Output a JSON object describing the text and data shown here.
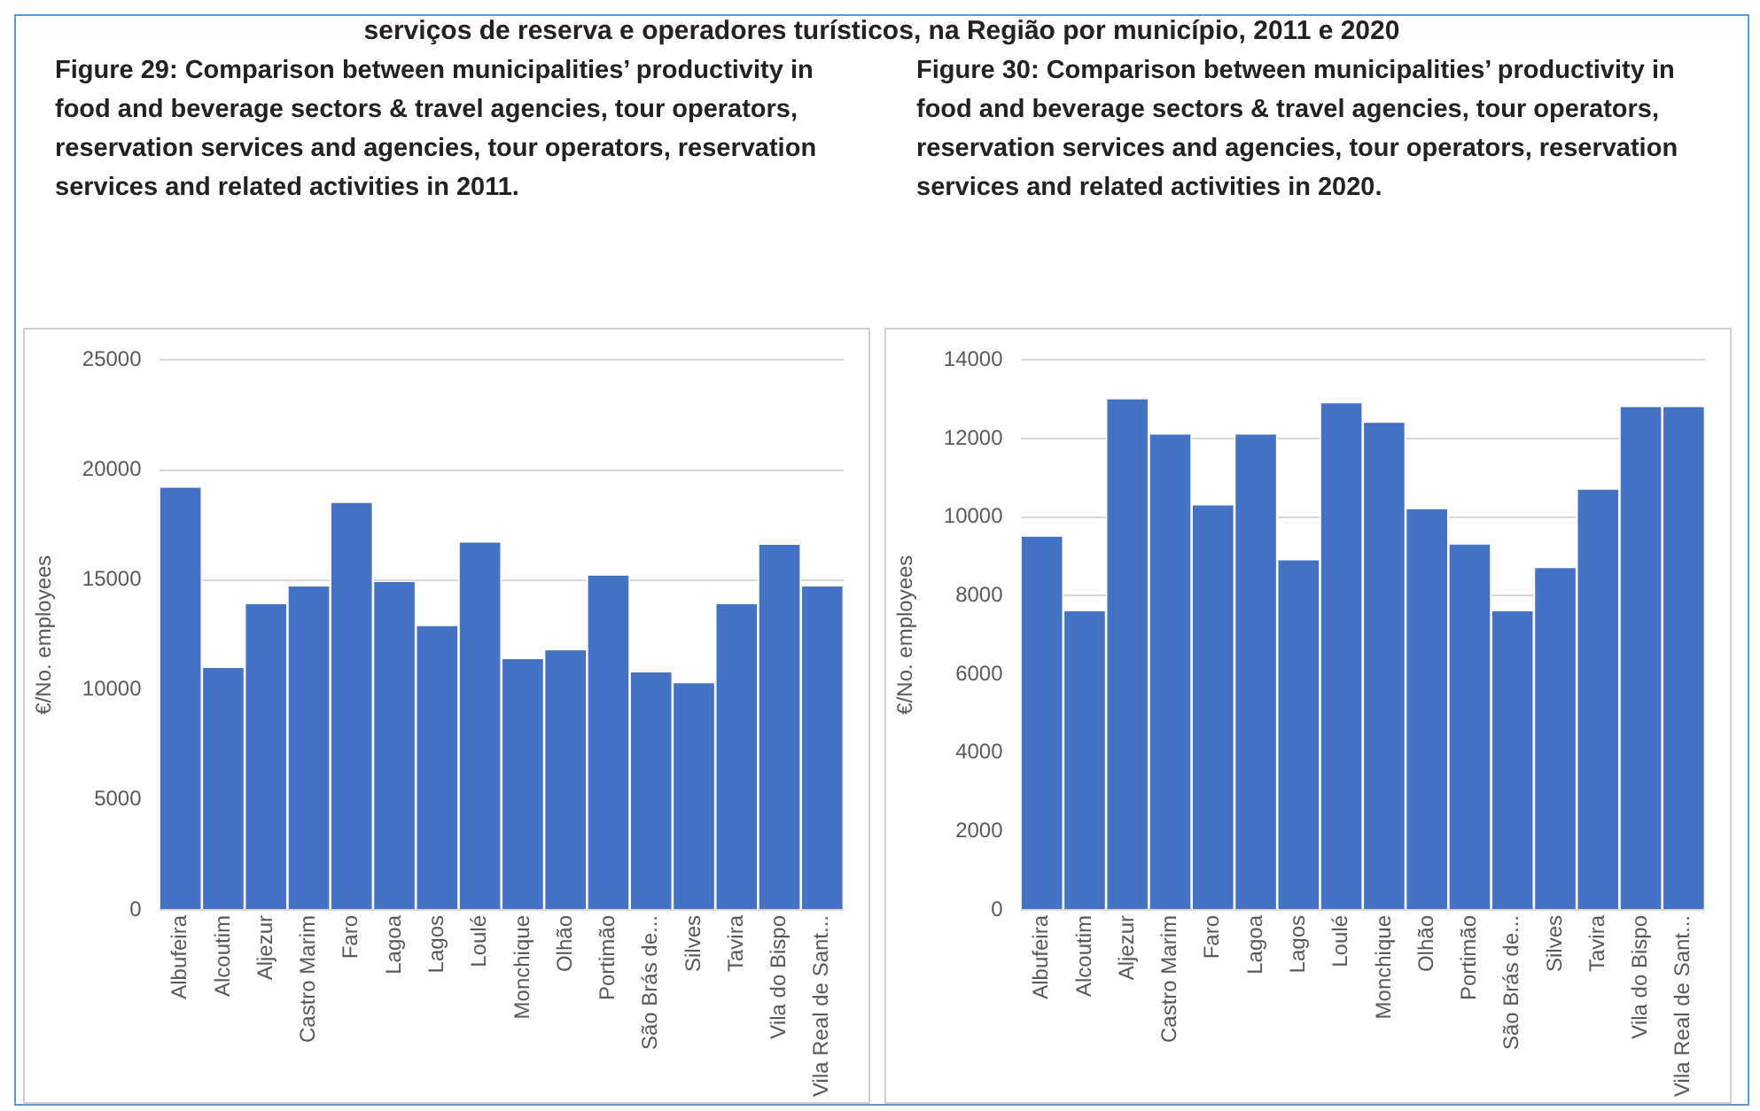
{
  "chart_data": [
    {
      "type": "bar",
      "title": "Figure 29: Comparison between municipalities’ productivity in food and beverage sectors & travel agencies, tour operators, reservation services and agencies, tour operators, reservation services and related activities in 2011.",
      "annotations": [
        "serviços de reserva e operadores turísticos, na Região por município, 2011 e 2020"
      ],
      "ylabel": "€/No. employees",
      "categories": [
        "Albufeira",
        "Alcoutim",
        "Aljezur",
        "Castro Marim",
        "Faro",
        "Lagoa",
        "Lagos",
        "Loulé",
        "Monchique",
        "Olhão",
        "Portimão",
        "São Brás de...",
        "Silves",
        "Tavira",
        "Vila do Bispo",
        "Vila Real de Sant..."
      ],
      "values": [
        19200,
        11000,
        13900,
        14700,
        18500,
        14900,
        12900,
        16700,
        11400,
        11800,
        15200,
        10800,
        10300,
        13900,
        16600,
        14700
      ],
      "color": "#4472c4",
      "ylim": [
        0,
        25000
      ],
      "yticks": [
        0,
        5000,
        10000,
        15000,
        20000,
        25000
      ],
      "grid": "y",
      "legend": false
    },
    {
      "type": "bar",
      "title": "Figure 30: Comparison between municipalities’ productivity in food and beverage sectors & travel agencies, tour operators, reservation services and agencies, tour operators, reservation services and related activities in 2020.",
      "ylabel": "€/No. employees",
      "categories": [
        "Albufeira",
        "Alcoutim",
        "Aljezur",
        "Castro Marim",
        "Faro",
        "Lagoa",
        "Lagos",
        "Loulé",
        "Monchique",
        "Olhão",
        "Portimão",
        "São Brás de...",
        "Silves",
        "Tavira",
        "Vila do Bispo",
        "Vila Real de Sant..."
      ],
      "values": [
        9500,
        7600,
        13000,
        12100,
        10300,
        12100,
        8900,
        12900,
        12400,
        10200,
        9300,
        7600,
        8700,
        10700,
        12800,
        12800
      ],
      "color": "#4472c4",
      "ylim": [
        0,
        14000
      ],
      "yticks": [
        0,
        2000,
        4000,
        6000,
        8000,
        10000,
        12000,
        14000
      ],
      "grid": "y",
      "legend": false
    }
  ]
}
